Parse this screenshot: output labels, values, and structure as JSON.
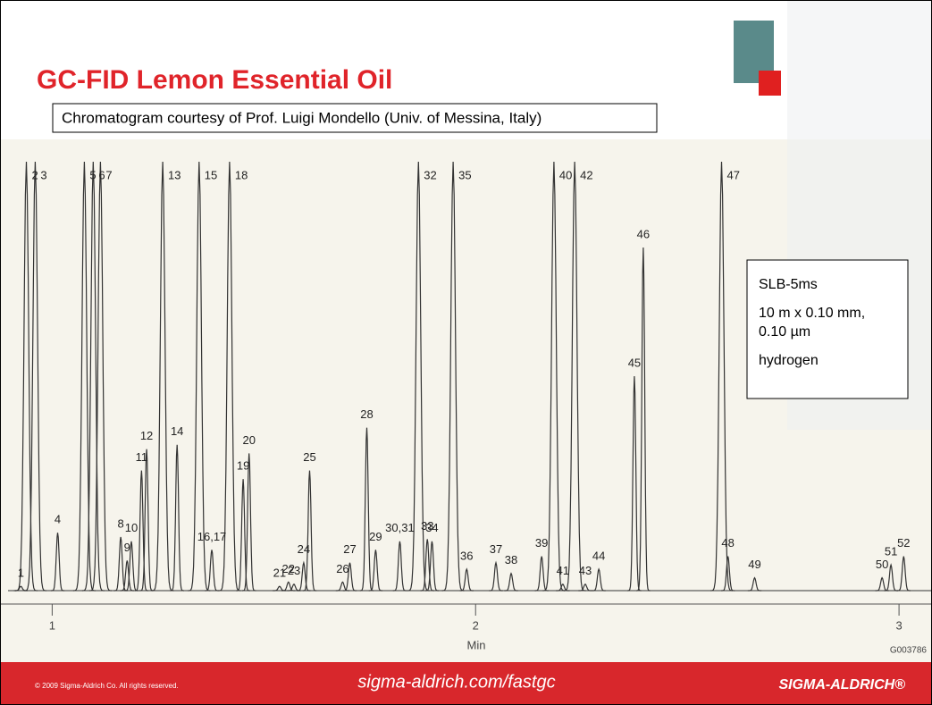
{
  "slide": {
    "title": "GC-FID Lemon Essential Oil",
    "credit": "Chromatogram courtesy of Prof. Luigi Mondello (Univ. of Messina, Italy)",
    "conditions": [
      "SLB-5ms",
      "10 m x 0.10 mm,",
      "0.10 µm",
      "hydrogen"
    ],
    "code": "G003786",
    "footer": {
      "copyright": "© 2009 Sigma-Aldrich Co. All rights reserved.",
      "url": "sigma-aldrich.com/fastgc",
      "brand": "SIGMA-ALDRICH®"
    }
  },
  "chart_data": {
    "type": "line",
    "x_label": "Min",
    "xlim": [
      0.9,
      3.08
    ],
    "xticks": [
      1,
      2,
      3
    ],
    "ylim": [
      0,
      100
    ],
    "color": "#333333",
    "labels": [
      "1",
      "2",
      "3",
      "4",
      "5",
      "6",
      "7",
      "8",
      "9",
      "10",
      "11",
      "12",
      "13",
      "14",
      "15",
      "16,17",
      "18",
      "19",
      "20",
      "21",
      "22",
      "23",
      "24",
      "25",
      "26",
      "27",
      "28",
      "29",
      "30,31",
      "32",
      "33",
      "34",
      "35",
      "36",
      "37",
      "38",
      "39",
      "40",
      "41",
      "42",
      "43",
      "44",
      "45",
      "46",
      "47",
      "48",
      "49",
      "50",
      "51",
      "52"
    ],
    "x": [
      0.926,
      0.939,
      0.96,
      1.013,
      1.076,
      1.097,
      1.114,
      1.162,
      1.177,
      1.187,
      1.211,
      1.223,
      1.261,
      1.295,
      1.347,
      1.377,
      1.419,
      1.451,
      1.465,
      1.537,
      1.558,
      1.571,
      1.594,
      1.608,
      1.686,
      1.703,
      1.743,
      1.764,
      1.821,
      1.865,
      1.886,
      1.897,
      1.947,
      1.979,
      2.048,
      2.084,
      2.156,
      2.185,
      2.206,
      2.234,
      2.259,
      2.291,
      2.375,
      2.396,
      2.581,
      2.596,
      2.659,
      2.96,
      2.981,
      3.011
    ],
    "values": [
      1,
      100,
      100,
      13.5,
      100,
      100,
      100,
      12.5,
      7,
      11.5,
      28,
      33,
      100,
      34,
      100,
      9.5,
      100,
      26,
      32,
      1,
      2,
      1.5,
      6.5,
      28,
      2,
      6.5,
      38,
      9.5,
      11.5,
      100,
      12,
      11.5,
      100,
      5,
      6.5,
      4,
      8,
      100,
      1.5,
      100,
      1.5,
      5,
      50,
      80,
      100,
      8,
      3,
      3,
      6,
      8
    ]
  }
}
